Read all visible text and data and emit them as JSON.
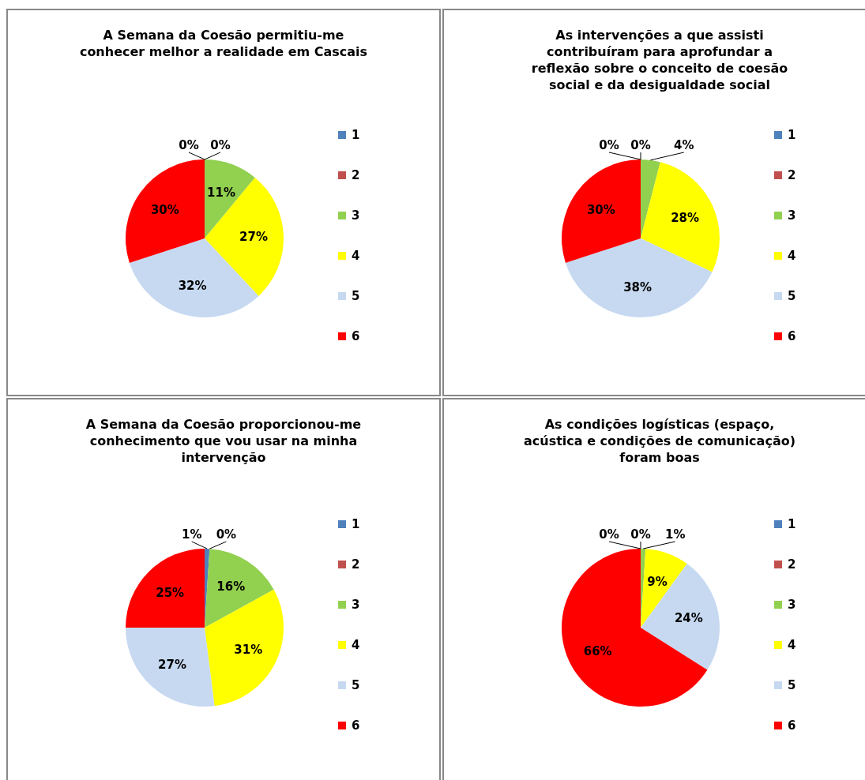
{
  "chart_data": [
    {
      "type": "pie",
      "title": "A Semana da Coesão permitiu-me conhecer melhor a realidade em Cascais",
      "categories": [
        "1",
        "2",
        "3",
        "4",
        "5",
        "6"
      ],
      "values": [
        0,
        0,
        11,
        27,
        32,
        30
      ],
      "value_labels": [
        "0%",
        "0%",
        "11%",
        "27%",
        "32%",
        "30%"
      ],
      "colors": [
        "#4f81bd",
        "#c0504d",
        "#92d050",
        "#ffff00",
        "#c6d9f1",
        "#ff0000"
      ],
      "legend": "right"
    },
    {
      "type": "pie",
      "title": "As intervenções a que assisti contribuíram para aprofundar a reflexão sobre o conceito de coesão social e da desigualdade social",
      "categories": [
        "1",
        "2",
        "3",
        "4",
        "5",
        "6"
      ],
      "values": [
        0,
        0,
        4,
        28,
        38,
        30
      ],
      "value_labels": [
        "0%",
        "0%",
        "4%",
        "28%",
        "38%",
        "30%"
      ],
      "colors": [
        "#4f81bd",
        "#c0504d",
        "#92d050",
        "#ffff00",
        "#c6d9f1",
        "#ff0000"
      ],
      "legend": "right"
    },
    {
      "type": "pie",
      "title": "A Semana da Coesão proporcionou-me conhecimento que vou usar na minha intervenção",
      "categories": [
        "1",
        "2",
        "3",
        "4",
        "5",
        "6"
      ],
      "values": [
        1,
        0,
        16,
        31,
        27,
        25
      ],
      "value_labels": [
        "1%",
        "0%",
        "16%",
        "31%",
        "27%",
        "25%"
      ],
      "colors": [
        "#4f81bd",
        "#c0504d",
        "#92d050",
        "#ffff00",
        "#c6d9f1",
        "#ff0000"
      ],
      "legend": "right"
    },
    {
      "type": "pie",
      "title": "As condições logísticas (espaço, acústica e condições de comunicação) foram boas",
      "categories": [
        "1",
        "2",
        "3",
        "4",
        "5",
        "6"
      ],
      "values": [
        0,
        0,
        1,
        9,
        24,
        66
      ],
      "value_labels": [
        "0%",
        "0%",
        "1%",
        "9%",
        "24%",
        "66%"
      ],
      "colors": [
        "#4f81bd",
        "#c0504d",
        "#92d050",
        "#ffff00",
        "#c6d9f1",
        "#ff0000"
      ],
      "legend": "right"
    }
  ]
}
